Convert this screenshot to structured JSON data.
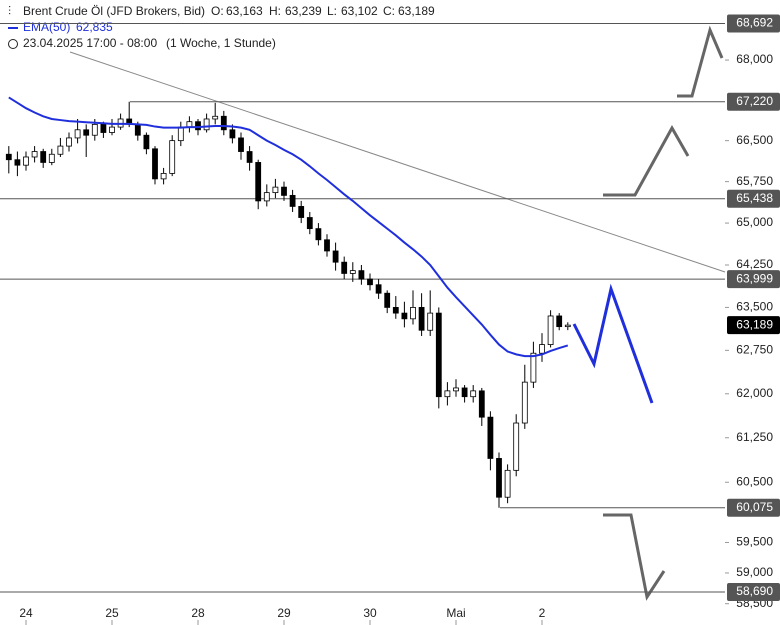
{
  "chart_data": {
    "type": "candlestick",
    "header": {
      "symbol": "Brent Crude Öl (JFD Brokers, Bid)",
      "ohlc": [
        {
          "label": "O:",
          "value": "63,163"
        },
        {
          "label": "H:",
          "value": "63,239"
        },
        {
          "label": "L:",
          "value": "63,102"
        },
        {
          "label": "C:",
          "value": "63,189"
        }
      ],
      "ema": {
        "label": "EMA(50)",
        "value": "62,835"
      },
      "date": "23.04.2025 17:00 - 08:00",
      "range": "(1 Woche, 1 Stunde)"
    },
    "categories": [
      null,
      null,
      "24",
      null,
      null,
      null,
      null,
      null,
      null,
      null,
      null,
      null,
      "25",
      null,
      null,
      null,
      null,
      null,
      null,
      null,
      null,
      null,
      "28",
      null,
      null,
      null,
      null,
      null,
      null,
      null,
      null,
      null,
      "29",
      null,
      null,
      null,
      null,
      null,
      null,
      null,
      null,
      null,
      "30",
      null,
      null,
      null,
      null,
      null,
      null,
      null,
      null,
      null,
      "Mai",
      null,
      null,
      null,
      null,
      null,
      null,
      null,
      null,
      null,
      "2",
      null,
      null,
      null
    ],
    "series": [
      {
        "name": "Brent Crude Öl",
        "up_color": "#ffffff",
        "down_color": "#000000",
        "border_color": "#000000",
        "open": [
          66250,
          66150,
          66050,
          66200,
          66300,
          66100,
          66250,
          66400,
          66550,
          66700,
          66600,
          66800,
          66650,
          66750,
          66900,
          66800,
          66600,
          66350,
          65800,
          65900,
          66500,
          66750,
          66850,
          66700,
          66900,
          66950,
          66700,
          66550,
          66300,
          66100,
          65400,
          65550,
          65650,
          65500,
          65300,
          65100,
          64900,
          64700,
          64500,
          64300,
          64100,
          64150,
          64000,
          63900,
          63750,
          63500,
          63400,
          63300,
          63500,
          63100,
          63400,
          61950,
          62050,
          62100,
          61950,
          62050,
          61600,
          60900,
          60250,
          60700,
          61500,
          62200,
          62700,
          62850,
          63350,
          63163
        ],
        "high": [
          66400,
          66300,
          66300,
          66400,
          66350,
          66350,
          66550,
          66650,
          66900,
          66800,
          66900,
          66850,
          66900,
          67000,
          67220,
          66850,
          66650,
          66400,
          66000,
          66600,
          66850,
          66950,
          66900,
          67000,
          67200,
          67050,
          66800,
          66650,
          66400,
          66150,
          65700,
          65800,
          65750,
          65600,
          65400,
          65200,
          65000,
          64800,
          64650,
          64400,
          64300,
          64250,
          64100,
          64000,
          63800,
          63700,
          63600,
          63800,
          63750,
          63800,
          63500,
          62200,
          62250,
          62150,
          62150,
          62100,
          61700,
          61000,
          60800,
          61650,
          62500,
          62900,
          63050,
          63450,
          63400,
          63239
        ],
        "low": [
          65900,
          65850,
          65950,
          66100,
          66000,
          66050,
          66200,
          66300,
          66450,
          66200,
          66500,
          66550,
          66600,
          66700,
          66750,
          66500,
          66250,
          65700,
          65700,
          65850,
          66400,
          66650,
          66600,
          66650,
          66800,
          66600,
          66450,
          66150,
          65950,
          65250,
          65300,
          65450,
          65400,
          65200,
          65000,
          64800,
          64600,
          64400,
          64150,
          64000,
          63950,
          63900,
          63800,
          63650,
          63400,
          63300,
          63150,
          63200,
          63000,
          63000,
          61750,
          61800,
          61950,
          61850,
          61850,
          61450,
          60700,
          60075,
          60150,
          60600,
          61400,
          62100,
          62550,
          62800,
          63100,
          63102
        ],
        "close": [
          66150,
          66050,
          66200,
          66300,
          66100,
          66250,
          66400,
          66550,
          66700,
          66600,
          66800,
          66650,
          66750,
          66900,
          66800,
          66600,
          66350,
          65800,
          65900,
          66500,
          66750,
          66850,
          66700,
          66900,
          66950,
          66700,
          66550,
          66300,
          66100,
          65400,
          65550,
          65650,
          65500,
          65300,
          65100,
          64900,
          64700,
          64500,
          64300,
          64100,
          64150,
          64000,
          63900,
          63750,
          63500,
          63400,
          63300,
          63500,
          63100,
          63400,
          61950,
          62050,
          62100,
          61950,
          62050,
          61600,
          60900,
          60250,
          60700,
          61500,
          62200,
          62700,
          62850,
          63350,
          63163,
          63189
        ]
      },
      {
        "name": "EMA(50)",
        "color": "#1f2fdc",
        "values": [
          67300,
          67200,
          67100,
          67020,
          66950,
          66900,
          66880,
          66860,
          66850,
          66840,
          66830,
          66820,
          66810,
          66810,
          66810,
          66800,
          66790,
          66760,
          66740,
          66740,
          66740,
          66750,
          66750,
          66760,
          66770,
          66770,
          66760,
          66740,
          66700,
          66600,
          66500,
          66420,
          66330,
          66250,
          66150,
          66030,
          65900,
          65780,
          65650,
          65520,
          65400,
          65270,
          65140,
          65020,
          64900,
          64780,
          64650,
          64530,
          64400,
          64250,
          64050,
          63850,
          63680,
          63520,
          63360,
          63200,
          63020,
          62850,
          62730,
          62680,
          62650,
          62650,
          62680,
          62740,
          62790,
          62835
        ]
      }
    ],
    "ylim": [
      58560,
      69140
    ],
    "log": true,
    "yticks": [
      {
        "value": 68000,
        "label": "68,000"
      },
      {
        "value": 66500,
        "label": "66,500"
      },
      {
        "value": 65750,
        "label": "65,750"
      },
      {
        "value": 65000,
        "label": "65,000"
      },
      {
        "value": 64250,
        "label": "64,250"
      },
      {
        "value": 63500,
        "label": "63,500"
      },
      {
        "value": 62750,
        "label": "62,750"
      },
      {
        "value": 62000,
        "label": "62,000"
      },
      {
        "value": 61250,
        "label": "61,250"
      },
      {
        "value": 60500,
        "label": "60,500"
      },
      {
        "value": 59500,
        "label": "59,500"
      },
      {
        "value": 59000,
        "label": "59,000"
      },
      {
        "value": 58500,
        "label": "58,500"
      }
    ],
    "levels": [
      {
        "value": 68692,
        "label": "68,692"
      },
      {
        "value": 67220,
        "label": "67,220"
      },
      {
        "value": 65438,
        "label": "65,438"
      },
      {
        "value": 63999,
        "label": "63,999"
      },
      {
        "value": 60075,
        "label": "60,075"
      },
      {
        "value": 58690,
        "label": "58,690"
      }
    ],
    "level_color": "#555555",
    "last_price": {
      "value": 63189,
      "label": "63,189"
    },
    "last_color": "#000000"
  }
}
